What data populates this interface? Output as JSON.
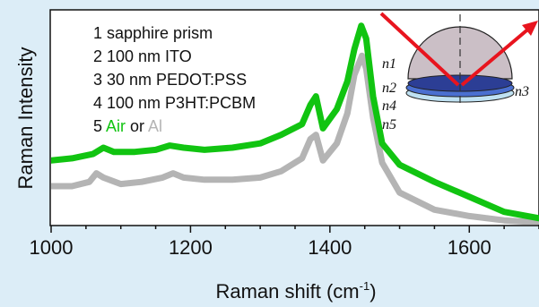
{
  "chart_data": {
    "type": "line",
    "xlabel": "Raman shift (cm",
    "xlabel_sup": "-1",
    "xlabel_close": ")",
    "ylabel": "Raman Intensity",
    "xlim": [
      1000,
      1700
    ],
    "ylim": [
      0,
      1
    ],
    "x_ticks": [
      1000,
      1200,
      1400,
      1600
    ],
    "x_tick_labels": [
      "1000",
      "1200",
      "1400",
      "1600"
    ],
    "grid": false,
    "series": [
      {
        "name": "Air",
        "color": "#11c411",
        "x": [
          1000,
          1030,
          1060,
          1075,
          1090,
          1120,
          1150,
          1170,
          1190,
          1220,
          1260,
          1300,
          1330,
          1360,
          1372,
          1380,
          1390,
          1410,
          1425,
          1435,
          1445,
          1452,
          1462,
          1475,
          1500,
          1550,
          1600,
          1650,
          1700
        ],
        "values": [
          0.3,
          0.31,
          0.33,
          0.36,
          0.34,
          0.34,
          0.35,
          0.37,
          0.36,
          0.35,
          0.36,
          0.38,
          0.42,
          0.47,
          0.56,
          0.6,
          0.45,
          0.54,
          0.67,
          0.82,
          0.93,
          0.87,
          0.6,
          0.38,
          0.28,
          0.2,
          0.13,
          0.06,
          0.03
        ]
      },
      {
        "name": "Al",
        "color": "#b4b4b4",
        "x": [
          1000,
          1030,
          1055,
          1065,
          1075,
          1100,
          1130,
          1160,
          1175,
          1190,
          1220,
          1260,
          1300,
          1330,
          1360,
          1372,
          1380,
          1390,
          1410,
          1425,
          1435,
          1446,
          1452,
          1462,
          1475,
          1500,
          1550,
          1600,
          1650,
          1700
        ],
        "values": [
          0.18,
          0.18,
          0.2,
          0.24,
          0.22,
          0.19,
          0.2,
          0.22,
          0.24,
          0.22,
          0.21,
          0.21,
          0.22,
          0.25,
          0.31,
          0.4,
          0.42,
          0.3,
          0.38,
          0.52,
          0.7,
          0.79,
          0.73,
          0.5,
          0.29,
          0.15,
          0.07,
          0.04,
          0.02,
          0.01
        ]
      }
    ]
  },
  "legend": {
    "lines": [
      "1 sapphire prism",
      "2 100 nm ITO",
      "3 30 nm PEDOT:PSS",
      "4 100 nm P3HT:PCBM"
    ],
    "line5_prefix": "5 ",
    "line5_air": "Air",
    "line5_or": " or ",
    "line5_al": "Al"
  },
  "inset": {
    "labels": {
      "n1": "n1",
      "n2": "n2",
      "n3": "n3",
      "n4": "n4",
      "n5": "n5"
    },
    "colors": {
      "prism": "#cbbfc6",
      "layer_dark": "#2c3e95",
      "layer_mid": "#4a6fd0",
      "layer_light": "#bfe1f2",
      "beam": "#e8141e"
    }
  }
}
